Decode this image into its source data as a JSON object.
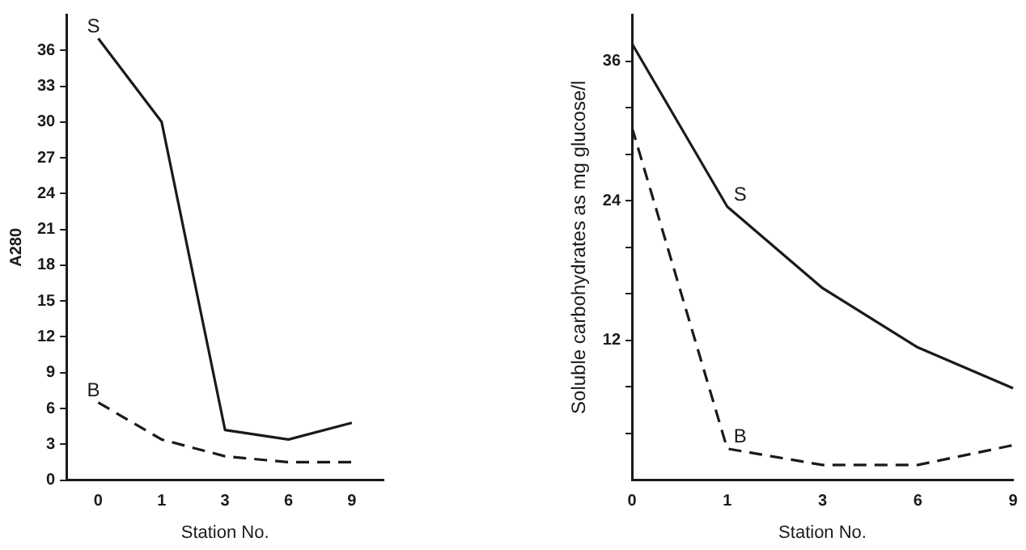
{
  "chart_data": [
    {
      "type": "line",
      "xlabel": "Station No.",
      "ylabel": "A280",
      "categories": [
        "0",
        "1",
        "3",
        "6",
        "9"
      ],
      "ylim": [
        0,
        39
      ],
      "yticks": [
        0,
        3,
        6,
        9,
        12,
        15,
        18,
        21,
        24,
        27,
        30,
        33,
        36
      ],
      "grid": false,
      "legend": false,
      "marker": "none",
      "series": [
        {
          "color": "#1a1a1a",
          "line_style": "solid",
          "values": [
            37,
            30,
            4.2,
            3.4,
            4.8
          ]
        },
        {
          "color": "#1a1a1a",
          "line_style": "dashed",
          "values": [
            6.5,
            3.4,
            2.0,
            1.5,
            1.5
          ]
        }
      ],
      "annotations": [
        {
          "text": "S",
          "x": "0",
          "y": 37
        },
        {
          "text": "B",
          "x": "0",
          "y": 6.5
        }
      ]
    },
    {
      "type": "line",
      "xlabel": "Station No.",
      "ylabel": "Soluble carbohydrates as mg glucose/l",
      "categories": [
        "0",
        "1",
        "3",
        "6",
        "9"
      ],
      "ylim": [
        0,
        40
      ],
      "yticks": [
        {
          "value": 4,
          "label": null
        },
        {
          "value": 8,
          "label": null
        },
        12,
        {
          "value": 16,
          "label": null
        },
        {
          "value": 20,
          "label": null
        },
        24,
        {
          "value": 28,
          "label": null
        },
        {
          "value": 32,
          "label": null
        },
        36
      ],
      "grid": false,
      "legend": false,
      "marker": "none",
      "series": [
        {
          "color": "#1a1a1a",
          "line_style": "solid",
          "values": [
            37.5,
            23.5,
            16.5,
            11.4,
            7.9
          ]
        },
        {
          "color": "#1a1a1a",
          "line_style": "dashed",
          "values": [
            30.3,
            2.7,
            1.3,
            1.3,
            3.0
          ]
        }
      ],
      "annotations": [
        {
          "text": "S",
          "x": "1",
          "y": 23.5
        },
        {
          "text": "B",
          "x": "1",
          "y": 2.7
        }
      ]
    }
  ]
}
